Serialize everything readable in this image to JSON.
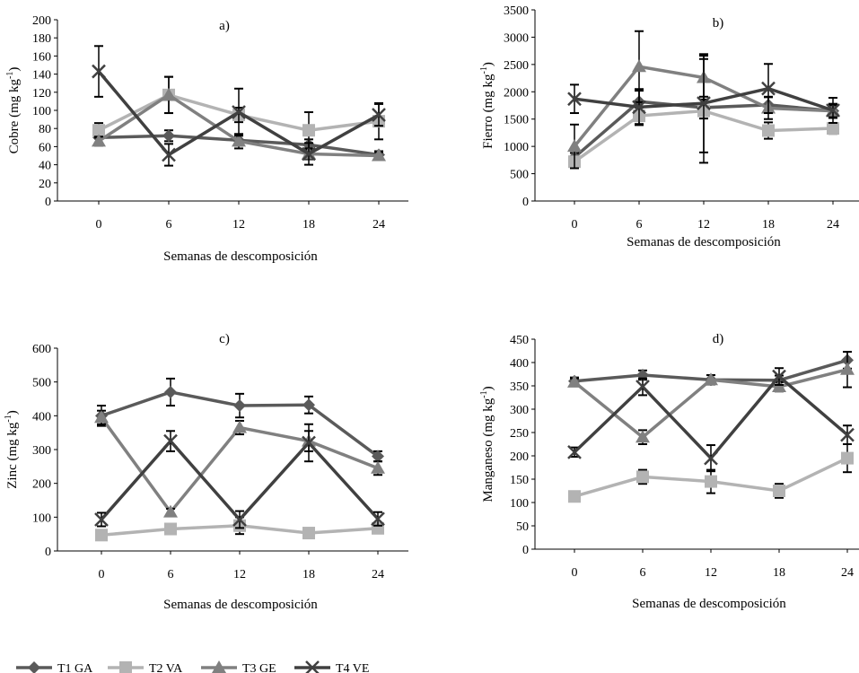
{
  "legend": {
    "items": [
      {
        "label": "T1 GA",
        "series": "T1"
      },
      {
        "label": "T2 VA",
        "series": "T2"
      },
      {
        "label": "T3 GE",
        "series": "T3"
      },
      {
        "label": "T4 VE",
        "series": "T4"
      }
    ]
  },
  "series_styles": {
    "T1": {
      "color": "#5a5a5a",
      "marker": "diamond"
    },
    "T2": {
      "color": "#b3b3b3",
      "marker": "square"
    },
    "T3": {
      "color": "#808080",
      "marker": "triangle"
    },
    "T4": {
      "color": "#404040",
      "marker": "x"
    }
  },
  "chart_data": [
    {
      "id": "a",
      "type": "line",
      "title": "a)",
      "xlabel": "Semanas de descomposición",
      "ylabel_main": "Cobre (mg kg",
      "ylabel_sup": "-1",
      "ylabel_end": ")",
      "categories": [
        "0",
        "6",
        "12",
        "18",
        "24"
      ],
      "ylim": [
        0,
        200
      ],
      "yticks": [
        0,
        20,
        40,
        60,
        80,
        100,
        120,
        140,
        160,
        180,
        200
      ],
      "series": [
        {
          "name": "T1 GA",
          "key": "T1",
          "values": [
            70,
            72,
            67,
            62,
            51
          ],
          "errors": [
            6,
            6,
            6,
            6,
            4
          ]
        },
        {
          "name": "T2 VA",
          "key": "T2",
          "values": [
            78,
            117,
            95,
            78,
            88
          ],
          "errors": [
            8,
            20,
            8,
            20,
            20
          ]
        },
        {
          "name": "T3 GE",
          "key": "T3",
          "values": [
            66,
            117,
            66,
            52,
            50
          ],
          "errors": [
            5,
            20,
            8,
            6,
            4
          ]
        },
        {
          "name": "T4 VE",
          "key": "T4",
          "values": [
            143,
            51,
            98,
            52,
            95
          ],
          "errors": [
            28,
            12,
            26,
            12,
            12
          ]
        }
      ]
    },
    {
      "id": "b",
      "type": "line",
      "title": "b)",
      "xlabel": "Semanas de descomposición",
      "ylabel_main": "Fierro (mg kg",
      "ylabel_sup": "-1",
      "ylabel_end": ")",
      "categories": [
        "0",
        "6",
        "12",
        "18",
        "24"
      ],
      "ylim": [
        0,
        3500
      ],
      "yticks": [
        0,
        500,
        1000,
        1500,
        2000,
        2500,
        3000,
        3500
      ],
      "series": [
        {
          "name": "T1 GA",
          "key": "T1",
          "values": [
            800,
            1820,
            1710,
            1760,
            1650
          ],
          "errors": [
            80,
            200,
            200,
            150,
            130
          ]
        },
        {
          "name": "T2 VA",
          "key": "T2",
          "values": [
            720,
            1560,
            1650,
            1290,
            1330
          ],
          "errors": [
            100,
            150,
            950,
            150,
            100
          ]
        },
        {
          "name": "T3 GE",
          "key": "T3",
          "values": [
            1000,
            2460,
            2260,
            1700,
            1650
          ],
          "errors": [
            400,
            650,
            400,
            200,
            100
          ]
        },
        {
          "name": "T4 VE",
          "key": "T4",
          "values": [
            1870,
            1720,
            1790,
            2060,
            1660
          ],
          "errors": [
            260,
            330,
            900,
            450,
            230
          ]
        }
      ]
    },
    {
      "id": "c",
      "type": "line",
      "title": "c)",
      "xlabel": "Semanas de descomposición",
      "ylabel_main": "Zinc (mg kg",
      "ylabel_sup": "-1",
      "ylabel_end": ")",
      "categories": [
        "0",
        "6",
        "12",
        "18",
        "24"
      ],
      "ylim": [
        0,
        600
      ],
      "yticks": [
        0,
        100,
        200,
        300,
        400,
        500,
        600
      ],
      "series": [
        {
          "name": "T1 GA",
          "key": "T1",
          "values": [
            400,
            470,
            430,
            432,
            280
          ],
          "errors": [
            30,
            40,
            35,
            25,
            15
          ]
        },
        {
          "name": "T2 VA",
          "key": "T2",
          "values": [
            47,
            65,
            75,
            53,
            67
          ],
          "errors": [
            5,
            8,
            25,
            6,
            8
          ]
        },
        {
          "name": "T3 GE",
          "key": "T3",
          "values": [
            395,
            115,
            365,
            325,
            245
          ],
          "errors": [
            20,
            10,
            20,
            30,
            20
          ]
        },
        {
          "name": "T4 VE",
          "key": "T4",
          "values": [
            93,
            325,
            93,
            320,
            95
          ],
          "errors": [
            20,
            30,
            25,
            55,
            20
          ]
        }
      ]
    },
    {
      "id": "d",
      "type": "line",
      "title": "d)",
      "xlabel": "Semanas de descomposición",
      "ylabel_main": "Manganeso (mg kg",
      "ylabel_sup": "-1",
      "ylabel_end": ")",
      "categories": [
        "0",
        "6",
        "12",
        "18",
        "24"
      ],
      "ylim": [
        0,
        450
      ],
      "yticks": [
        0,
        50,
        100,
        150,
        200,
        250,
        300,
        350,
        400,
        450
      ],
      "series": [
        {
          "name": "T1 GA",
          "key": "T1",
          "values": [
            360,
            373,
            363,
            362,
            405
          ],
          "errors": [
            8,
            10,
            10,
            10,
            18
          ]
        },
        {
          "name": "T2 VA",
          "key": "T2",
          "values": [
            113,
            155,
            145,
            125,
            195
          ],
          "errors": [
            8,
            15,
            25,
            15,
            30
          ]
        },
        {
          "name": "T3 GE",
          "key": "T3",
          "values": [
            358,
            240,
            363,
            348,
            385
          ],
          "errors": [
            8,
            15,
            10,
            10,
            38
          ]
        },
        {
          "name": "T4 VE",
          "key": "T4",
          "values": [
            208,
            348,
            195,
            370,
            245
          ],
          "errors": [
            10,
            18,
            28,
            18,
            20
          ]
        }
      ]
    }
  ]
}
